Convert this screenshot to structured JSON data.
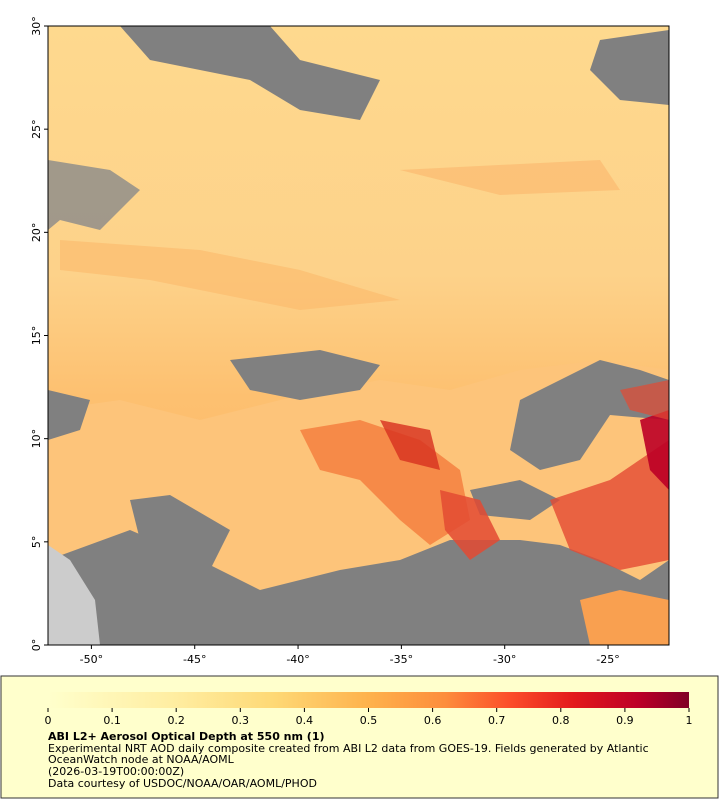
{
  "map": {
    "xlim": [
      -52.1,
      -22.05
    ],
    "ylim": [
      0,
      30
    ],
    "xticks": [
      {
        "value": -50,
        "label": "-50°"
      },
      {
        "value": -45,
        "label": "-45°"
      },
      {
        "value": -40,
        "label": "-40°"
      },
      {
        "value": -35,
        "label": "-35°"
      },
      {
        "value": -30,
        "label": "-30°"
      },
      {
        "value": -25,
        "label": "-25°"
      }
    ],
    "yticks": [
      {
        "value": 0,
        "label": "0°"
      },
      {
        "value": 5,
        "label": "5°"
      },
      {
        "value": 10,
        "label": "10°"
      },
      {
        "value": 15,
        "label": "15°"
      },
      {
        "value": 20,
        "label": "20°"
      },
      {
        "value": 25,
        "label": "25°"
      },
      {
        "value": 30,
        "label": "30°"
      }
    ]
  },
  "colorbar": {
    "lim": [
      0,
      1
    ],
    "ticks": [
      0,
      0.1,
      0.2,
      0.3,
      0.4,
      0.5,
      0.6,
      0.7,
      0.8,
      0.9,
      1
    ]
  },
  "caption": {
    "title": "ABI L2+ Aerosol Optical Depth at 550 nm (1)",
    "lines": [
      "Experimental NRT AOD daily composite created from ABI L2 data from GOES-19. Fields generated by Atlantic",
      "OceanWatch node at NOAA/AOML",
      "(2026-03-19T00:00:00Z)",
      "Data courtesy of USDOC/NOAA/OAR/AOML/PHOD"
    ]
  }
}
